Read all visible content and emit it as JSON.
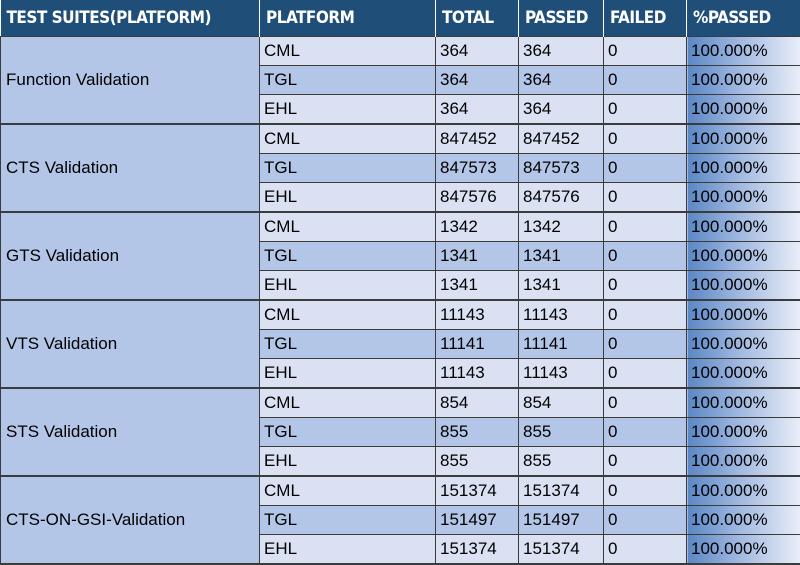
{
  "headers": [
    "TEST SUITES(PLATFORM)",
    "PLATFORM",
    "TOTAL",
    "PASSED",
    "FAILED",
    "%PASSED"
  ],
  "suites": [
    {
      "name": "Function Validation",
      "rows": [
        {
          "platform": "CML",
          "total": "364",
          "passed": "364",
          "failed": "0",
          "pct": "100.000%"
        },
        {
          "platform": "TGL",
          "total": "364",
          "passed": "364",
          "failed": "0",
          "pct": "100.000%"
        },
        {
          "platform": "EHL",
          "total": "364",
          "passed": "364",
          "failed": "0",
          "pct": "100.000%"
        }
      ]
    },
    {
      "name": "CTS Validation",
      "rows": [
        {
          "platform": "CML",
          "total": "847452",
          "passed": "847452",
          "failed": "0",
          "pct": "100.000%"
        },
        {
          "platform": "TGL",
          "total": "847573",
          "passed": "847573",
          "failed": "0",
          "pct": "100.000%"
        },
        {
          "platform": "EHL",
          "total": "847576",
          "passed": "847576",
          "failed": "0",
          "pct": "100.000%"
        }
      ]
    },
    {
      "name": "GTS Validation",
      "rows": [
        {
          "platform": "CML",
          "total": "1342",
          "passed": "1342",
          "failed": "0",
          "pct": "100.000%"
        },
        {
          "platform": "TGL",
          "total": "1341",
          "passed": "1341",
          "failed": "0",
          "pct": "100.000%"
        },
        {
          "platform": "EHL",
          "total": "1341",
          "passed": "1341",
          "failed": "0",
          "pct": "100.000%"
        }
      ]
    },
    {
      "name": "VTS Validation",
      "rows": [
        {
          "platform": "CML",
          "total": "11143",
          "passed": "11143",
          "failed": "0",
          "pct": "100.000%"
        },
        {
          "platform": "TGL",
          "total": "11141",
          "passed": "11141",
          "failed": "0",
          "pct": "100.000%"
        },
        {
          "platform": "EHL",
          "total": "11143",
          "passed": "11143",
          "failed": "0",
          "pct": "100.000%"
        }
      ]
    },
    {
      "name": "STS Validation",
      "rows": [
        {
          "platform": "CML",
          "total": "854",
          "passed": "854",
          "failed": "0",
          "pct": "100.000%"
        },
        {
          "platform": "TGL",
          "total": "855",
          "passed": "855",
          "failed": "0",
          "pct": "100.000%"
        },
        {
          "platform": "EHL",
          "total": "855",
          "passed": "855",
          "failed": "0",
          "pct": "100.000%"
        }
      ]
    },
    {
      "name": "CTS-ON-GSI-Validation",
      "rows": [
        {
          "platform": "CML",
          "total": "151374",
          "passed": "151374",
          "failed": "0",
          "pct": "100.000%"
        },
        {
          "platform": "TGL",
          "total": "151497",
          "passed": "151497",
          "failed": "0",
          "pct": "100.000%"
        },
        {
          "platform": "EHL",
          "total": "151374",
          "passed": "151374",
          "failed": "0",
          "pct": "100.000%"
        }
      ]
    }
  ]
}
